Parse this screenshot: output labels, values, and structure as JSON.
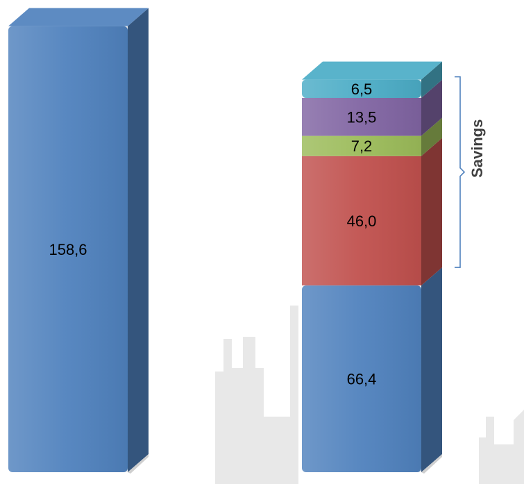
{
  "chart_data": {
    "type": "bar",
    "stacked": true,
    "style": "3d",
    "categories": [
      "",
      ""
    ],
    "series": [
      {
        "values": [
          158.6,
          66.4
        ],
        "labels": [
          "158,6",
          "66,4"
        ],
        "color": "#4f81bd"
      },
      {
        "values": [
          0,
          46.0
        ],
        "labels": [
          "",
          "46,0"
        ],
        "color": "#c0504d"
      },
      {
        "values": [
          0,
          7.2
        ],
        "labels": [
          "",
          "7,2"
        ],
        "color": "#9bbb59"
      },
      {
        "values": [
          0,
          13.5
        ],
        "labels": [
          "",
          "13,5"
        ],
        "color": "#8064a2"
      },
      {
        "values": [
          0,
          6.5
        ],
        "labels": [
          "",
          "6,5"
        ],
        "color": "#4bacc6"
      }
    ],
    "annotations": [
      {
        "text": "Savings",
        "spans_series": [
          1,
          2,
          3,
          4
        ],
        "category": 1
      }
    ],
    "grid": false,
    "legend": "none"
  },
  "colors": {
    "background": "#ffffff",
    "skyline_watermark": "#e6e6e6",
    "bracket": "#4f81bd",
    "annotation_text": "#404040"
  }
}
